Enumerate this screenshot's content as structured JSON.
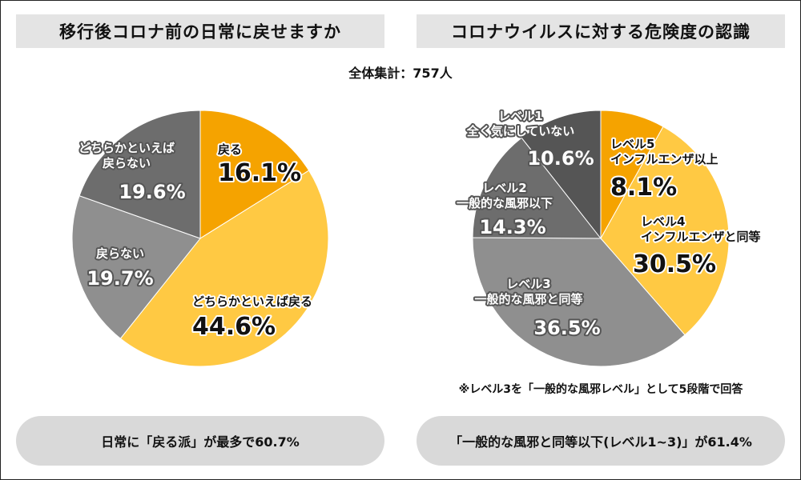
{
  "left_title": "移行後コロナ前の日常に戻せますか",
  "right_title": "コロナウイルスに対する危険度の認識",
  "total_label": "全体集計：757人",
  "footnote": "※レベル3を「一般的な風邪レベル」として5段階で回答",
  "left_summary": "日常に「戻る派」が最多で60.7%",
  "right_summary": "「一般的な風邪と同等以下(レベル1~3)」が61.4%",
  "chart_data": [
    {
      "type": "pie",
      "title": "移行後コロナ前の日常に戻せますか",
      "slices": [
        {
          "label": [
            "戻る"
          ],
          "value": 16.1,
          "pct_label": "16.1%",
          "color": "#f5a300",
          "text": "dark"
        },
        {
          "label": [
            "どちらかといえば戻る"
          ],
          "value": 44.6,
          "pct_label": "44.6%",
          "color": "#ffc943",
          "text": "dark"
        },
        {
          "label": [
            "戻らない"
          ],
          "value": 19.7,
          "pct_label": "19.7%",
          "color": "#8f8f8f",
          "text": "white"
        },
        {
          "label": [
            "どちらかといえば",
            "戻らない"
          ],
          "value": 19.6,
          "pct_label": "19.6%",
          "color": "#6d6d6d",
          "text": "white"
        }
      ]
    },
    {
      "type": "pie",
      "title": "コロナウイルスに対する危険度の認識",
      "slices": [
        {
          "label": [
            "レベル5",
            "インフルエンザ以上"
          ],
          "value": 8.1,
          "pct_label": "8.1%",
          "color": "#f5a300",
          "text": "dark"
        },
        {
          "label": [
            "レベル4",
            "インフルエンザと同等"
          ],
          "value": 30.5,
          "pct_label": "30.5%",
          "color": "#ffc943",
          "text": "dark"
        },
        {
          "label": [
            "レベル3",
            "一般的な風邪と同等"
          ],
          "value": 36.5,
          "pct_label": "36.5%",
          "color": "#8f8f8f",
          "text": "white"
        },
        {
          "label": [
            "レベル2",
            "一般的な風邪以下"
          ],
          "value": 14.3,
          "pct_label": "14.3%",
          "color": "#6d6d6d",
          "text": "white"
        },
        {
          "label": [
            "レベル1",
            "全く気にしていない"
          ],
          "value": 10.6,
          "pct_label": "10.6%",
          "color": "#555555",
          "text": "white"
        }
      ]
    }
  ]
}
